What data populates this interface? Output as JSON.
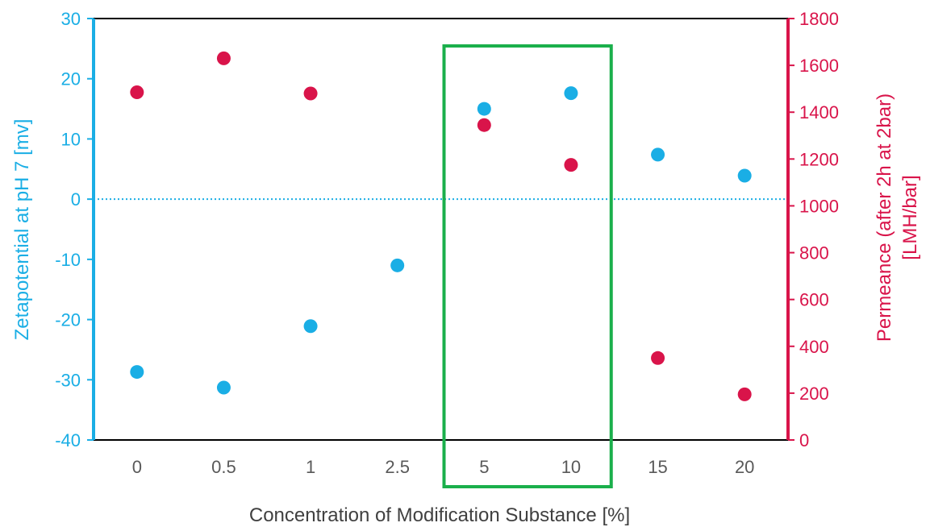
{
  "chart_data": {
    "type": "scatter",
    "title": "",
    "xlabel": "Concentration of Modification Substance [%]",
    "ylabel_left": "Zetapotential at pH  7 [mv]",
    "ylabel_right_line1": "Permeance (after 2h at 2bar)",
    "ylabel_right_line2": "[LMH/bar]",
    "categories": [
      "0",
      "0.5",
      "1",
      "2.5",
      "5",
      "10",
      "15",
      "20"
    ],
    "y_left": {
      "range": [
        -40,
        30
      ],
      "ticks": [
        30,
        20,
        10,
        0,
        -10,
        -20,
        -30,
        -40
      ],
      "color": "#1aaee5"
    },
    "y_right": {
      "range": [
        0,
        1800
      ],
      "ticks": [
        1800,
        1600,
        1400,
        1200,
        1000,
        800,
        600,
        400,
        200,
        0
      ],
      "color": "#d9144a"
    },
    "series": [
      {
        "axis": "left",
        "color": "#1aaee5",
        "values": [
          -28.7,
          -31.3,
          -21.1,
          -11.0,
          15.0,
          17.6,
          7.4,
          3.9
        ]
      },
      {
        "axis": "right",
        "color": "#d9144a",
        "values": [
          1485,
          1630,
          1480,
          null,
          1345,
          1175,
          350,
          195
        ]
      }
    ],
    "reference_line": {
      "axis": "left",
      "value": 0,
      "style": "dotted",
      "color": "#1aaee5"
    },
    "highlight_box": {
      "categories": [
        "5",
        "10"
      ],
      "color": "#1aaf4b"
    },
    "grid": false,
    "legend": "none"
  }
}
